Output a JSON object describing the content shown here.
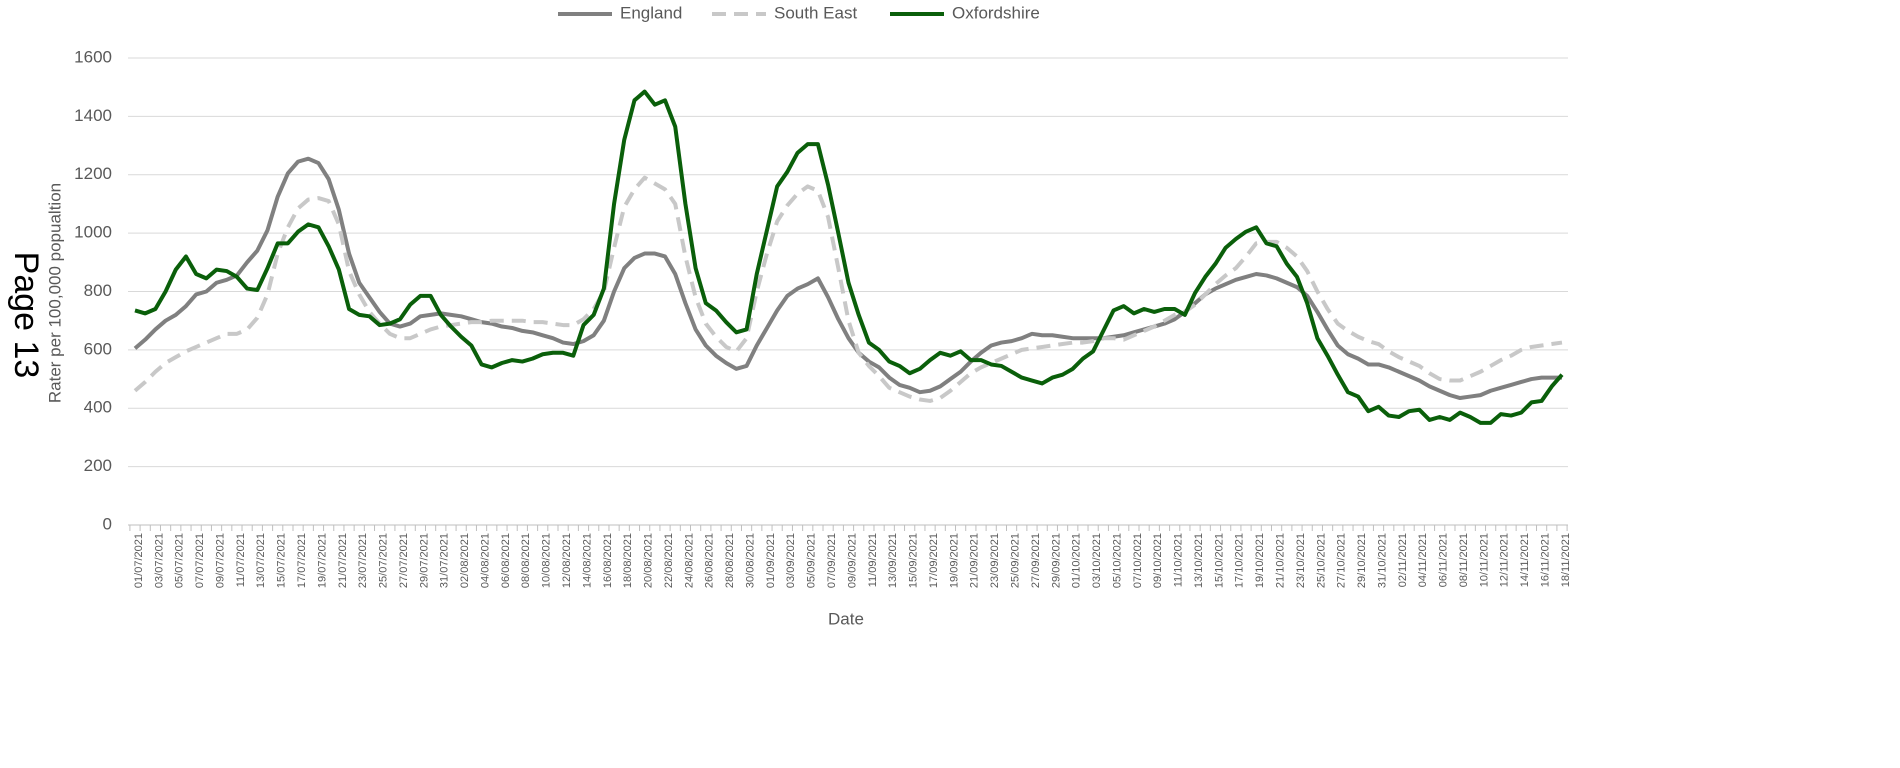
{
  "page_label": "Page 13",
  "chart_data": {
    "type": "line",
    "ylabel": "Rater per 100,000 popualtion",
    "xlabel": "Date",
    "ylim": [
      0,
      1600
    ],
    "yticks": [
      0,
      200,
      400,
      600,
      800,
      1000,
      1200,
      1400,
      1600
    ],
    "grid": true,
    "legend": "top",
    "categories": [
      "01/07/2021",
      null,
      "03/07/2021",
      null,
      "05/07/2021",
      null,
      "07/07/2021",
      null,
      "09/07/2021",
      null,
      "11/07/2021",
      null,
      "13/07/2021",
      null,
      "15/07/2021",
      null,
      "17/07/2021",
      null,
      "19/07/2021",
      null,
      "21/07/2021",
      null,
      "23/07/2021",
      null,
      "25/07/2021",
      null,
      "27/07/2021",
      null,
      "29/07/2021",
      null,
      "31/07/2021",
      null,
      "02/08/2021",
      null,
      "04/08/2021",
      null,
      "06/08/2021",
      null,
      "08/08/2021",
      null,
      "10/08/2021",
      null,
      "12/08/2021",
      null,
      "14/08/2021",
      null,
      "16/08/2021",
      null,
      "18/08/2021",
      null,
      "20/08/2021",
      null,
      "22/08/2021",
      null,
      "24/08/2021",
      null,
      "26/08/2021",
      null,
      "28/08/2021",
      null,
      "30/08/2021",
      null,
      "01/09/2021",
      null,
      "03/09/2021",
      null,
      "05/09/2021",
      null,
      "07/09/2021",
      null,
      "09/09/2021",
      null,
      "11/09/2021",
      null,
      "13/09/2021",
      null,
      "15/09/2021",
      null,
      "17/09/2021",
      null,
      "19/09/2021",
      null,
      "21/09/2021",
      null,
      "23/09/2021",
      null,
      "25/09/2021",
      null,
      "27/09/2021",
      null,
      "29/09/2021",
      null,
      "01/10/2021",
      null,
      "03/10/2021",
      null,
      "05/10/2021",
      null,
      "07/10/2021",
      null,
      "09/10/2021",
      null,
      "11/10/2021",
      null,
      "13/10/2021",
      null,
      "15/10/2021",
      null,
      "17/10/2021",
      null,
      "19/10/2021",
      null,
      "21/10/2021",
      null,
      "23/10/2021",
      null,
      "25/10/2021",
      null,
      "27/10/2021",
      null,
      "29/10/2021",
      null,
      "31/10/2021",
      null,
      "02/11/2021",
      null,
      "04/11/2021",
      null,
      "06/11/2021",
      null,
      "08/11/2021",
      null,
      "10/11/2021",
      null,
      "12/11/2021",
      null,
      "14/11/2021",
      null,
      "16/11/2021",
      null,
      "18/11/2021"
    ],
    "series": [
      {
        "name": "England",
        "color": "#808080",
        "dash": false,
        "values": [
          605,
          635,
          670,
          700,
          720,
          750,
          790,
          800,
          830,
          840,
          855,
          900,
          940,
          1010,
          1125,
          1205,
          1245,
          1255,
          1240,
          1185,
          1080,
          930,
          830,
          780,
          730,
          690,
          680,
          690,
          715,
          720,
          725,
          720,
          715,
          705,
          695,
          690,
          680,
          675,
          665,
          660,
          650,
          640,
          625,
          620,
          630,
          650,
          700,
          800,
          880,
          915,
          930,
          930,
          920,
          860,
          760,
          670,
          615,
          580,
          555,
          535,
          545,
          615,
          675,
          735,
          785,
          810,
          825,
          845,
          780,
          705,
          640,
          590,
          560,
          540,
          505,
          480,
          470,
          455,
          460,
          475,
          500,
          525,
          560,
          590,
          615,
          625,
          630,
          640,
          655,
          650,
          650,
          645,
          640,
          640,
          640,
          640,
          645,
          650,
          660,
          670,
          680,
          690,
          705,
          730,
          760,
          790,
          810,
          825,
          840,
          850,
          860,
          855,
          845,
          830,
          815,
          785,
          730,
          670,
          615,
          585,
          570,
          550,
          550,
          540,
          525,
          510,
          495,
          475,
          460,
          445,
          435,
          440,
          445,
          460,
          470,
          480,
          490,
          500,
          505,
          505,
          505
        ]
      },
      {
        "name": "South East",
        "color": "#c8c8c8",
        "dash": true,
        "values": [
          460,
          490,
          525,
          555,
          575,
          595,
          610,
          625,
          640,
          655,
          655,
          670,
          710,
          790,
          930,
          1020,
          1085,
          1115,
          1120,
          1110,
          1030,
          870,
          790,
          730,
          690,
          655,
          640,
          640,
          655,
          670,
          680,
          685,
          690,
          695,
          695,
          700,
          700,
          700,
          700,
          695,
          695,
          690,
          685,
          685,
          705,
          740,
          800,
          950,
          1090,
          1150,
          1190,
          1170,
          1150,
          1100,
          920,
          780,
          690,
          645,
          610,
          595,
          640,
          800,
          930,
          1040,
          1095,
          1135,
          1160,
          1145,
          1055,
          880,
          700,
          590,
          545,
          510,
          470,
          455,
          440,
          430,
          425,
          435,
          460,
          490,
          520,
          540,
          555,
          570,
          585,
          600,
          605,
          610,
          615,
          620,
          625,
          625,
          630,
          640,
          640,
          635,
          650,
          665,
          680,
          700,
          720,
          730,
          755,
          790,
          825,
          855,
          880,
          920,
          965,
          970,
          970,
          950,
          920,
          870,
          800,
          740,
          690,
          665,
          645,
          630,
          620,
          595,
          575,
          560,
          545,
          520,
          500,
          495,
          495,
          510,
          525,
          545,
          565,
          580,
          600,
          610,
          615,
          620,
          625
        ]
      },
      {
        "name": "Oxfordshire",
        "color": "#0a5f0a",
        "dash": false,
        "values": [
          735,
          725,
          740,
          800,
          875,
          920,
          860,
          845,
          875,
          870,
          850,
          810,
          805,
          880,
          965,
          965,
          1005,
          1030,
          1020,
          955,
          875,
          740,
          720,
          715,
          685,
          690,
          705,
          755,
          785,
          785,
          720,
          680,
          645,
          615,
          550,
          540,
          555,
          565,
          560,
          570,
          585,
          590,
          590,
          580,
          685,
          720,
          810,
          1100,
          1320,
          1455,
          1485,
          1440,
          1455,
          1365,
          1100,
          880,
          760,
          735,
          695,
          660,
          670,
          860,
          1010,
          1160,
          1210,
          1275,
          1305,
          1305,
          1165,
          1000,
          830,
          720,
          625,
          600,
          560,
          545,
          520,
          535,
          565,
          590,
          580,
          595,
          565,
          565,
          550,
          545,
          525,
          505,
          495,
          485,
          505,
          515,
          535,
          570,
          595,
          665,
          735,
          750,
          725,
          740,
          730,
          740,
          740,
          720,
          795,
          850,
          895,
          950,
          980,
          1005,
          1020,
          965,
          955,
          895,
          850,
          760,
          640,
          580,
          515,
          455,
          440,
          390,
          405,
          375,
          370,
          390,
          395,
          360,
          370,
          360,
          385,
          370,
          350,
          350,
          380,
          375,
          385,
          420,
          425,
          475,
          515
        ]
      }
    ]
  }
}
